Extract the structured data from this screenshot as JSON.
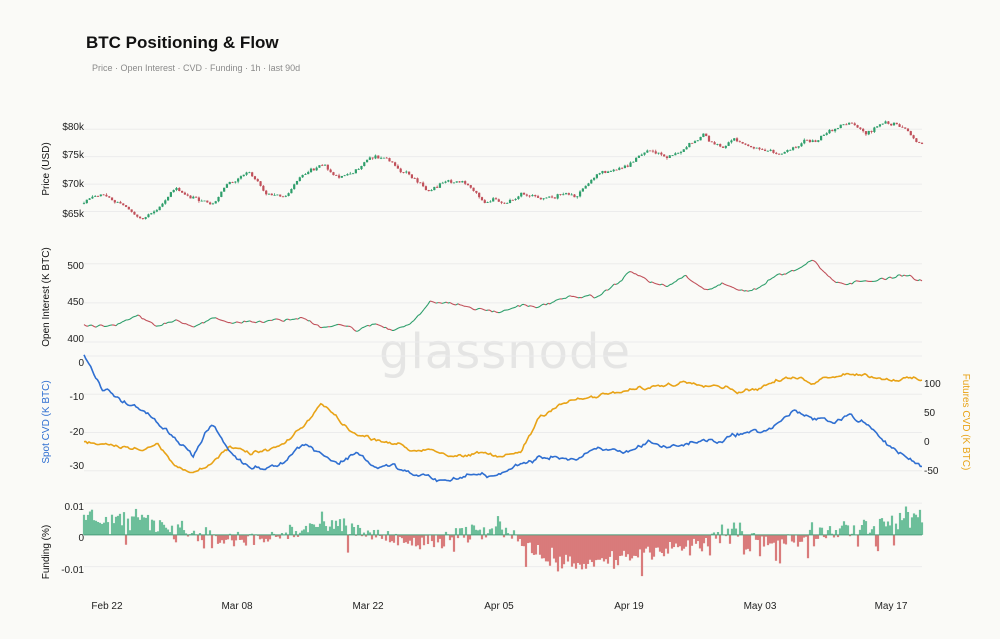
{
  "title": "BTC Positioning & Flow",
  "subtitle": "Price · Open Interest · CVD · Funding · 1h · last 90d",
  "watermark": "glassnode",
  "colors": {
    "up": "#2e9e6b",
    "down": "#c0505a",
    "spot_cvd": "#2f6fd1",
    "futures_cvd": "#e8a317",
    "funding_pos": "#6cbf9a",
    "funding_neg": "#d97b7b",
    "grid": "#ececec"
  },
  "x_ticks": [
    "Feb 22",
    "Mar 08",
    "Mar 22",
    "Apr 05",
    "Apr 19",
    "May 03",
    "May 17"
  ],
  "chart_data": [
    {
      "type": "candlestick",
      "ylabel": "Price (USD)",
      "yticks": [
        "$65k",
        "$70k",
        "$75k",
        "$80k"
      ],
      "ylim": [
        62000,
        83500
      ],
      "x": [
        "Feb 18",
        "Feb 20",
        "Feb 22",
        "Feb 24",
        "Feb 26",
        "Feb 28",
        "Mar 01",
        "Mar 03",
        "Mar 05",
        "Mar 07",
        "Mar 09",
        "Mar 11",
        "Mar 13",
        "Mar 15",
        "Mar 17",
        "Mar 19",
        "Mar 21",
        "Mar 23",
        "Mar 25",
        "Mar 27",
        "Mar 29",
        "Mar 31",
        "Apr 02",
        "Apr 04",
        "Apr 06",
        "Apr 08",
        "Apr 10",
        "Apr 12",
        "Apr 14",
        "Apr 16",
        "Apr 18",
        "Apr 20",
        "Apr 22",
        "Apr 24",
        "Apr 26",
        "Apr 28",
        "Apr 30",
        "May 02",
        "May 04",
        "May 06",
        "May 08",
        "May 10",
        "May 12",
        "May 14",
        "May 16",
        "May 18",
        "May 19"
      ],
      "close": [
        66500,
        67800,
        66200,
        64000,
        65500,
        68800,
        67200,
        66000,
        70500,
        72500,
        68500,
        67500,
        71000,
        73000,
        71500,
        72500,
        75200,
        73000,
        71000,
        69500,
        71500,
        70500,
        66500,
        66500,
        68000,
        67500,
        68500,
        68000,
        71000,
        72500,
        73500,
        75500,
        74000,
        76500,
        78500,
        76500,
        77500,
        77000,
        76000,
        77000,
        78500,
        80500,
        81500,
        79500,
        81000,
        81000,
        77500
      ]
    },
    {
      "type": "line",
      "ylabel": "Open Interest (K BTC)",
      "yticks": [
        "400",
        "450",
        "500"
      ],
      "ylim": [
        400,
        515
      ],
      "x": [
        "Feb 18",
        "Feb 20",
        "Feb 22",
        "Feb 24",
        "Feb 26",
        "Feb 28",
        "Mar 01",
        "Mar 03",
        "Mar 05",
        "Mar 07",
        "Mar 09",
        "Mar 11",
        "Mar 13",
        "Mar 15",
        "Mar 17",
        "Mar 19",
        "Mar 21",
        "Mar 23",
        "Mar 25",
        "Mar 27",
        "Mar 29",
        "Mar 31",
        "Apr 02",
        "Apr 04",
        "Apr 06",
        "Apr 08",
        "Apr 10",
        "Apr 12",
        "Apr 14",
        "Apr 16",
        "Apr 18",
        "Apr 20",
        "Apr 22",
        "Apr 24",
        "Apr 26",
        "Apr 28",
        "Apr 30",
        "May 02",
        "May 04",
        "May 06",
        "May 08",
        "May 10",
        "May 12",
        "May 14",
        "May 16",
        "May 18",
        "May 19"
      ],
      "values": [
        420,
        418,
        422,
        432,
        418,
        430,
        422,
        430,
        423,
        428,
        425,
        428,
        430,
        420,
        425,
        415,
        422,
        415,
        428,
        450,
        450,
        445,
        440,
        438,
        448,
        445,
        452,
        460,
        455,
        470,
        490,
        478,
        470,
        485,
        465,
        473,
        465,
        470,
        485,
        492,
        505,
        482,
        475,
        482,
        480,
        486,
        478
      ]
    },
    {
      "type": "line",
      "ylabel": "Spot CVD (K BTC)",
      "ylabel_right": "Futures CVD (K BTC)",
      "yticks": [
        "-30",
        "-20",
        "-10",
        "0"
      ],
      "yticks_right": [
        "-50",
        "0",
        "50",
        "100"
      ],
      "ylim": [
        -34,
        0
      ],
      "ylim_right": [
        -70,
        135
      ],
      "x": [
        "Feb 18",
        "Feb 20",
        "Feb 22",
        "Feb 24",
        "Feb 26",
        "Feb 28",
        "Mar 01",
        "Mar 03",
        "Mar 05",
        "Mar 07",
        "Mar 09",
        "Mar 11",
        "Mar 13",
        "Mar 15",
        "Mar 17",
        "Mar 19",
        "Mar 21",
        "Mar 23",
        "Mar 25",
        "Mar 27",
        "Mar 29",
        "Mar 31",
        "Apr 02",
        "Apr 04",
        "Apr 06",
        "Apr 08",
        "Apr 10",
        "Apr 12",
        "Apr 14",
        "Apr 16",
        "Apr 18",
        "Apr 20",
        "Apr 22",
        "Apr 24",
        "Apr 26",
        "Apr 28",
        "Apr 30",
        "May 02",
        "May 04",
        "May 06",
        "May 08",
        "May 10",
        "May 12",
        "May 14",
        "May 16",
        "May 18",
        "May 19"
      ],
      "series": [
        {
          "name": "Spot CVD (K BTC)",
          "values": [
            0,
            -9,
            -11,
            -14,
            -17,
            -21,
            -26,
            -18,
            -25,
            -29,
            -29,
            -27,
            -23,
            -25,
            -28,
            -25,
            -29,
            -29,
            -31,
            -32,
            -33,
            -31,
            -31,
            -31,
            -28,
            -27,
            -26,
            -27,
            -25,
            -25,
            -25,
            -22,
            -24,
            -23,
            -22,
            -22,
            -20,
            -20,
            -18,
            -14,
            -17,
            -17,
            -15,
            -18,
            -23,
            -26,
            -29
          ]
        },
        {
          "name": "Futures CVD (K BTC)",
          "values": [
            0,
            -2,
            -5,
            -10,
            -3,
            -40,
            -50,
            -30,
            -10,
            -20,
            -15,
            -5,
            20,
            60,
            35,
            10,
            5,
            0,
            -15,
            -10,
            -20,
            -25,
            -20,
            -25,
            -15,
            40,
            60,
            65,
            70,
            75,
            80,
            85,
            90,
            95,
            95,
            90,
            80,
            85,
            95,
            100,
            95,
            105,
            110,
            105,
            100,
            100,
            95
          ]
        }
      ]
    },
    {
      "type": "bar",
      "ylabel": "Funding (%)",
      "yticks": [
        "-0.01",
        "0",
        "0.01"
      ],
      "ylim": [
        -0.018,
        0.011
      ]
    }
  ]
}
